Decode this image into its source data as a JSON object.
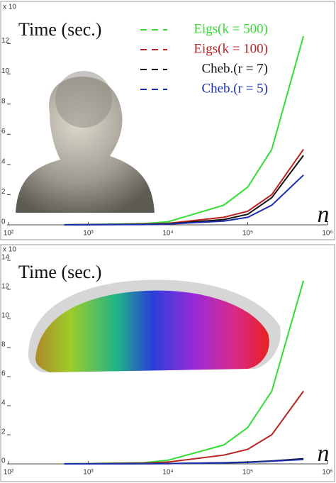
{
  "chart_data": [
    {
      "type": "line",
      "title": "Time (sec.)",
      "xlabel": "n",
      "y_scale_label": "x 10",
      "xscale": "log",
      "xlim": [
        100,
        1000000
      ],
      "xticks": [
        {
          "value": 100,
          "label": "10²"
        },
        {
          "value": 1000,
          "label": "10³"
        },
        {
          "value": 10000,
          "label": "10⁴"
        },
        {
          "value": 100000,
          "label": "10⁵"
        },
        {
          "value": 1000000,
          "label": "10⁶"
        }
      ],
      "ylim": [
        0,
        14
      ],
      "yticks": [
        0,
        2,
        4,
        6,
        8,
        10,
        12
      ],
      "x": [
        500,
        1000,
        5000,
        10000,
        50000,
        100000,
        200000,
        500000
      ],
      "series": [
        {
          "name": "Eigs(k = 500)",
          "color": "#33dd33",
          "values": [
            0.01,
            0.02,
            0.08,
            0.2,
            1.3,
            2.5,
            5,
            12.5
          ]
        },
        {
          "name": "Eigs(k = 100)",
          "color": "#bb2222",
          "values": [
            0,
            0.01,
            0.05,
            0.1,
            0.5,
            0.9,
            2,
            5
          ]
        },
        {
          "name": "Cheb.(r = 7)",
          "color": "#111111",
          "values": [
            0,
            0.01,
            0.03,
            0.06,
            0.35,
            0.7,
            1.8,
            4.6
          ]
        },
        {
          "name": "Cheb.(r = 5)",
          "color": "#1a2fb0",
          "values": [
            0,
            0.01,
            0.02,
            0.05,
            0.25,
            0.5,
            1.3,
            3.3
          ]
        }
      ]
    },
    {
      "type": "line",
      "title": "Time (sec.)",
      "xlabel": "n",
      "y_scale_label": "x 10",
      "xscale": "log",
      "xlim": [
        100,
        1000000
      ],
      "xticks": [
        {
          "value": 100,
          "label": "10²"
        },
        {
          "value": 1000,
          "label": "10³"
        },
        {
          "value": 10000,
          "label": "10⁴"
        },
        {
          "value": 100000,
          "label": "10⁵"
        },
        {
          "value": 1000000,
          "label": "10⁶"
        }
      ],
      "ylim": [
        0,
        14
      ],
      "yticks": [
        0,
        2,
        4,
        6,
        8,
        10,
        12,
        14
      ],
      "x": [
        500,
        1000,
        5000,
        10000,
        50000,
        100000,
        200000,
        500000
      ],
      "series": [
        {
          "color": "#33dd33",
          "values": [
            0.01,
            0.02,
            0.08,
            0.25,
            1.3,
            2.5,
            5,
            12.6
          ]
        },
        {
          "color": "#bb2222",
          "values": [
            0,
            0.01,
            0.05,
            0.12,
            0.6,
            1,
            2,
            5
          ]
        },
        {
          "color": "#111111",
          "values": [
            0,
            0,
            0.01,
            0.02,
            0.08,
            0.12,
            0.2,
            0.35
          ]
        },
        {
          "color": "#1a2fb0",
          "values": [
            0,
            0,
            0.01,
            0.02,
            0.07,
            0.1,
            0.18,
            0.3
          ]
        }
      ]
    }
  ]
}
